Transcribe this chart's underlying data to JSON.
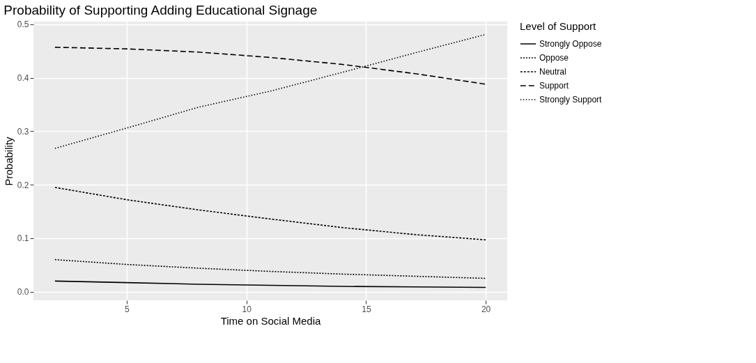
{
  "chart_data": {
    "type": "line",
    "title": "Probability of Supporting Adding Educational Signage",
    "xlabel": "Time on Social Media",
    "ylabel": "Probability",
    "legend_title": "Level of Support",
    "x": [
      2,
      5,
      8,
      11,
      14,
      17,
      20
    ],
    "series": [
      {
        "name": "Strongly Oppose",
        "color": "#000000",
        "line_style": "solid",
        "values": [
          0.02,
          0.017,
          0.014,
          0.012,
          0.01,
          0.009,
          0.008
        ]
      },
      {
        "name": "Oppose",
        "color": "#000000",
        "line_style": "dotted",
        "values": [
          0.06,
          0.051,
          0.044,
          0.038,
          0.033,
          0.029,
          0.025
        ]
      },
      {
        "name": "Neutral",
        "color": "#000000",
        "line_style": "dashed",
        "values": [
          0.195,
          0.172,
          0.153,
          0.136,
          0.12,
          0.107,
          0.097
        ]
      },
      {
        "name": "Support",
        "color": "#000000",
        "line_style": "dashed",
        "values": [
          0.457,
          0.454,
          0.448,
          0.438,
          0.425,
          0.408,
          0.388
        ]
      },
      {
        "name": "Strongly Support",
        "color": "#000000",
        "line_style": "dotted",
        "values": [
          0.268,
          0.306,
          0.345,
          0.375,
          0.41,
          0.446,
          0.481
        ]
      }
    ],
    "xlim": [
      1.1,
      20.9
    ],
    "xticks": [
      5,
      10,
      15,
      20
    ],
    "ylim": [
      -0.016,
      0.505
    ],
    "yticks": [
      {
        "value": 0,
        "label": "0.0"
      },
      0.1,
      0.2,
      0.3,
      0.4,
      0.5
    ],
    "grid": true,
    "legend": "right",
    "marker": "none"
  }
}
